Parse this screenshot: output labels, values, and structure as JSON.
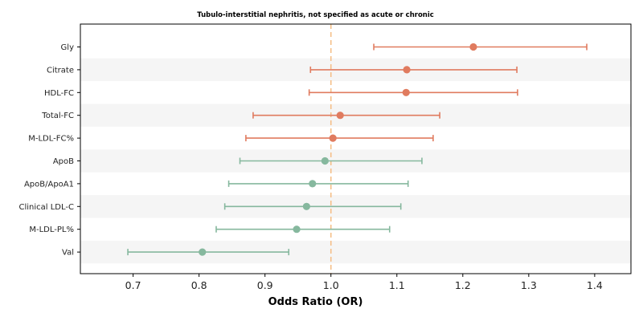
{
  "chart_data": {
    "type": "forest",
    "title": "Tubulo-interstitial nephritis, not specified as acute or chronic",
    "xlabel": "Odds Ratio (OR)",
    "ylabel": "",
    "xlim": [
      0.62,
      1.455
    ],
    "xticks": [
      "0.7",
      "0.8",
      "0.9",
      "1.0",
      "1.1",
      "1.2",
      "1.3",
      "1.4"
    ],
    "reference_line": 1.0,
    "colors": {
      "risk": "#e07b5f",
      "protective": "#86b89e",
      "reference": "#f5c08a",
      "band": "#f5f5f5"
    },
    "rows": [
      {
        "label": "Gly",
        "or": 1.216,
        "lo": 1.065,
        "hi": 1.388,
        "group": "risk"
      },
      {
        "label": "Citrate",
        "or": 1.115,
        "lo": 0.969,
        "hi": 1.282,
        "group": "risk"
      },
      {
        "label": "HDL-FC",
        "or": 1.114,
        "lo": 0.967,
        "hi": 1.283,
        "group": "risk"
      },
      {
        "label": "Total-FC",
        "or": 1.014,
        "lo": 0.882,
        "hi": 1.165,
        "group": "risk"
      },
      {
        "label": "M-LDL-FC%",
        "or": 1.003,
        "lo": 0.871,
        "hi": 1.155,
        "group": "risk"
      },
      {
        "label": "ApoB",
        "or": 0.991,
        "lo": 0.862,
        "hi": 1.138,
        "group": "protective"
      },
      {
        "label": "ApoB/ApoA1",
        "or": 0.972,
        "lo": 0.845,
        "hi": 1.117,
        "group": "protective"
      },
      {
        "label": "Clinical LDL-C",
        "or": 0.963,
        "lo": 0.839,
        "hi": 1.106,
        "group": "protective"
      },
      {
        "label": "M-LDL-PL%",
        "or": 0.948,
        "lo": 0.826,
        "hi": 1.089,
        "group": "protective"
      },
      {
        "label": "Val",
        "or": 0.805,
        "lo": 0.692,
        "hi": 0.936,
        "group": "protective"
      }
    ]
  }
}
